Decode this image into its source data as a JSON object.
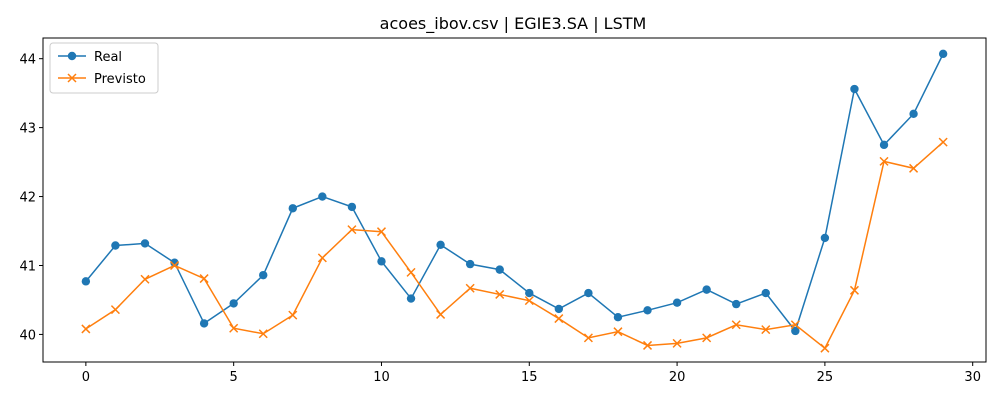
{
  "chart_data": {
    "type": "line",
    "title": "acoes_ibov.csv | EGIE3.SA | LSTM",
    "xlabel": "",
    "ylabel": "",
    "xlim": [
      -1.45,
      30.45
    ],
    "ylim": [
      39.6,
      44.3
    ],
    "x_ticks": [
      0,
      5,
      10,
      15,
      20,
      25,
      30
    ],
    "y_ticks": [
      40,
      41,
      42,
      43,
      44
    ],
    "grid": false,
    "legend_position": "top-left",
    "x": [
      0,
      1,
      2,
      3,
      4,
      5,
      6,
      7,
      8,
      9,
      10,
      11,
      12,
      13,
      14,
      15,
      16,
      17,
      18,
      19,
      20,
      21,
      22,
      23,
      24,
      25,
      26,
      27,
      28,
      29
    ],
    "series": [
      {
        "name": "Real",
        "color": "#1f77b4",
        "marker": "circle",
        "values": [
          40.77,
          41.29,
          41.32,
          41.04,
          40.16,
          40.45,
          40.86,
          41.83,
          42.0,
          41.85,
          41.06,
          40.52,
          41.3,
          41.02,
          40.94,
          40.6,
          40.37,
          40.6,
          40.25,
          40.35,
          40.46,
          40.65,
          40.44,
          40.6,
          40.05,
          41.4,
          43.56,
          42.75,
          43.2,
          44.07
        ]
      },
      {
        "name": "Previsto",
        "color": "#ff7f0e",
        "marker": "x",
        "values": [
          40.08,
          40.36,
          40.8,
          41.0,
          40.81,
          40.09,
          40.01,
          40.28,
          41.11,
          41.52,
          41.49,
          40.9,
          40.29,
          40.67,
          40.58,
          40.49,
          40.23,
          39.95,
          40.04,
          39.84,
          39.87,
          39.95,
          40.14,
          40.07,
          40.14,
          39.8,
          40.64,
          42.51,
          42.41,
          42.79
        ]
      }
    ]
  }
}
